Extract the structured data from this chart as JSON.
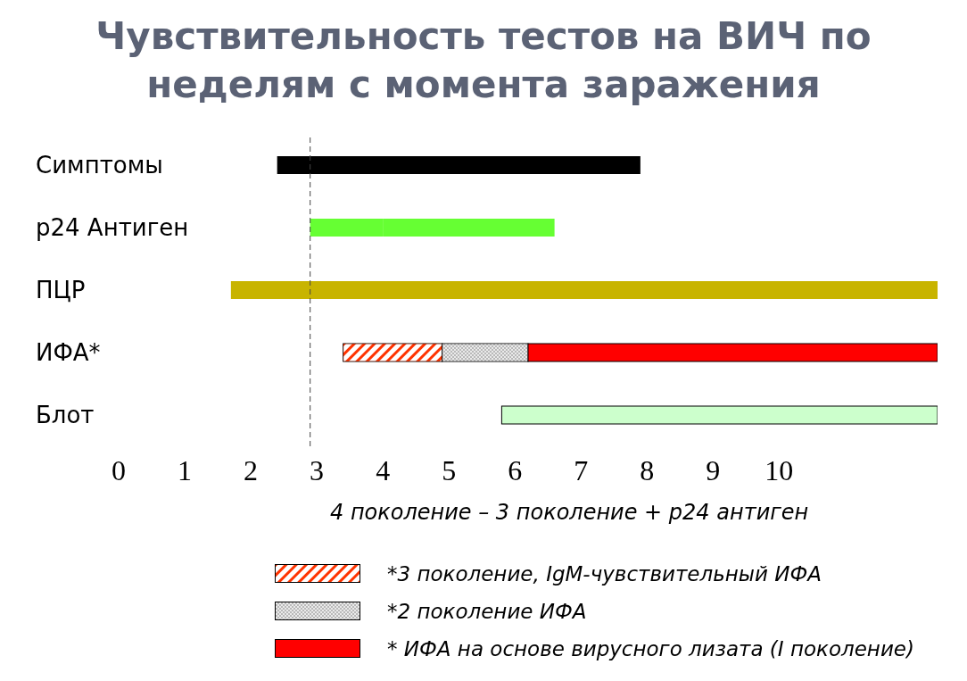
{
  "chart_data": {
    "type": "bar",
    "orientation": "horizontal",
    "title": "Чувствительность тестов на ВИЧ по неделям с момента заражения",
    "categories": [
      "Симптомы",
      "p24 Антиген",
      "ПЦР",
      "ИФА*",
      "Блот"
    ],
    "series": [
      {
        "color": "#000000",
        "values": [
          5.5,
          null,
          null,
          null,
          null
        ],
        "base": [
          2.4,
          null,
          null,
          null,
          null
        ]
      },
      {
        "color": "#66ff33",
        "values": [
          null,
          1.1,
          null,
          null,
          null
        ],
        "base": [
          null,
          2.9,
          null,
          null,
          null
        ]
      },
      {
        "color": "#66ff33",
        "values": [
          null,
          2.6,
          null,
          null,
          null
        ],
        "base": [
          null,
          4.0,
          null,
          null,
          null
        ]
      },
      {
        "color": "#c8b400",
        "values": [
          null,
          null,
          10.7,
          null,
          null
        ],
        "base": [
          null,
          null,
          1.7,
          null,
          null
        ]
      },
      {
        "name": "*3 поколение, IgM-чувствительный ИФА",
        "color": "#ff3300",
        "values": [
          null,
          null,
          null,
          1.5,
          null
        ],
        "base": [
          null,
          null,
          null,
          3.4,
          null
        ]
      },
      {
        "name": "*2 поколение ИФА",
        "color": "#a8a8a8",
        "values": [
          null,
          null,
          null,
          1.3,
          null
        ],
        "base": [
          null,
          null,
          null,
          4.9,
          null
        ]
      },
      {
        "name": "* ИФА на основе вирусного лизата (I поколение)",
        "color": "#ff0000",
        "values": [
          null,
          null,
          null,
          6.2,
          null
        ],
        "base": [
          null,
          null,
          null,
          6.2,
          null
        ]
      },
      {
        "color": "#ccffcc",
        "values": [
          null,
          null,
          null,
          null,
          6.6
        ],
        "base": [
          null,
          null,
          null,
          null,
          5.8
        ]
      }
    ],
    "xlim": [
      0,
      12.4
    ],
    "xticks": [
      0,
      1,
      2,
      3,
      4,
      5,
      6,
      7,
      8,
      9,
      10
    ],
    "ref_lines": [
      {
        "axis": "x",
        "value": 2.9,
        "line_style": "dashed",
        "color": "#444444"
      }
    ],
    "annotations": [
      "4 поколение – 3 поколение + p24 антиген"
    ],
    "grid": false,
    "legend": "bottom"
  }
}
